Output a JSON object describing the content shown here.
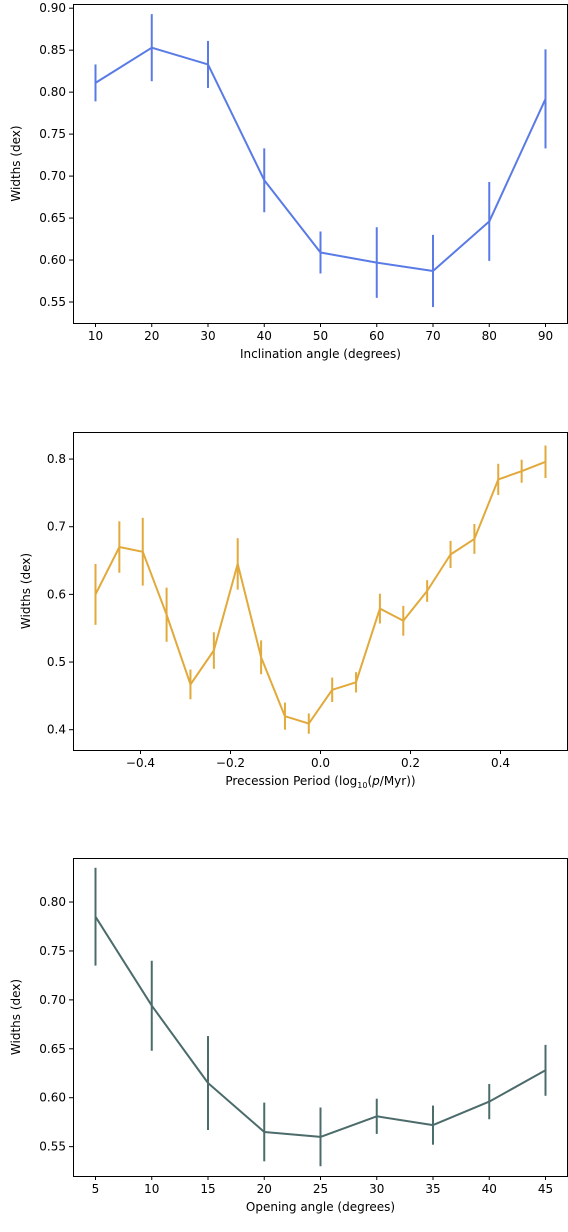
{
  "chart_data": [
    {
      "type": "line",
      "color": "#5a7be6",
      "xlabel": "Inclination angle (degrees)",
      "ylabel": "Widths (dex)",
      "xlim": [
        6,
        94
      ],
      "ylim": [
        0.525,
        0.905
      ],
      "xticks": [
        10,
        20,
        30,
        40,
        50,
        60,
        70,
        80,
        90
      ],
      "xtick_labels": [
        "10",
        "20",
        "30",
        "40",
        "50",
        "60",
        "70",
        "80",
        "90"
      ],
      "yticks": [
        0.55,
        0.6,
        0.65,
        0.7,
        0.75,
        0.8,
        0.85,
        0.9
      ],
      "ytick_labels": [
        "0.55",
        "0.60",
        "0.65",
        "0.70",
        "0.75",
        "0.80",
        "0.85",
        "0.90"
      ],
      "x": [
        10,
        20,
        30,
        40,
        50,
        60,
        70,
        80,
        90
      ],
      "y": [
        0.811,
        0.853,
        0.833,
        0.695,
        0.609,
        0.597,
        0.587,
        0.646,
        0.792
      ],
      "yerr": [
        0.022,
        0.04,
        0.028,
        0.038,
        0.025,
        0.042,
        0.043,
        0.047,
        0.059
      ]
    },
    {
      "type": "line",
      "color": "#e2a93b",
      "xlabel_pre": "Precession Period (log",
      "xlabel_sub": "10",
      "xlabel_mid": "(",
      "xlabel_italic": "p",
      "xlabel_post": "/Myr))",
      "ylabel": "Widths (dex)",
      "xlim": [
        -0.55,
        0.55
      ],
      "ylim": [
        0.37,
        0.84
      ],
      "xticks": [
        -0.4,
        -0.2,
        0.0,
        0.2,
        0.4
      ],
      "xtick_labels": [
        "−0.4",
        "−0.2",
        "0.0",
        "0.2",
        "0.4"
      ],
      "yticks": [
        0.4,
        0.5,
        0.6,
        0.7,
        0.8
      ],
      "ytick_labels": [
        "0.4",
        "0.5",
        "0.6",
        "0.7",
        "0.8"
      ],
      "x": [
        -0.5,
        -0.447,
        -0.395,
        -0.342,
        -0.289,
        -0.237,
        -0.184,
        -0.132,
        -0.079,
        -0.026,
        0.026,
        0.079,
        0.132,
        0.184,
        0.237,
        0.289,
        0.342,
        0.395,
        0.447,
        0.5
      ],
      "y": [
        0.6,
        0.67,
        0.663,
        0.57,
        0.467,
        0.517,
        0.645,
        0.507,
        0.42,
        0.409,
        0.459,
        0.47,
        0.579,
        0.561,
        0.605,
        0.659,
        0.682,
        0.77,
        0.782,
        0.796
      ],
      "yerr": [
        0.045,
        0.038,
        0.05,
        0.04,
        0.022,
        0.027,
        0.038,
        0.025,
        0.02,
        0.015,
        0.018,
        0.015,
        0.022,
        0.022,
        0.016,
        0.02,
        0.022,
        0.023,
        0.017,
        0.024
      ]
    },
    {
      "type": "line",
      "color": "#4c6b6b",
      "xlabel": "Opening angle (degrees)",
      "ylabel": "Widths (dex)",
      "xlim": [
        3,
        47
      ],
      "ylim": [
        0.52,
        0.845
      ],
      "xticks": [
        5,
        10,
        15,
        20,
        25,
        30,
        35,
        40,
        45
      ],
      "xtick_labels": [
        "5",
        "10",
        "15",
        "20",
        "25",
        "30",
        "35",
        "40",
        "45"
      ],
      "yticks": [
        0.55,
        0.6,
        0.65,
        0.7,
        0.75,
        0.8
      ],
      "ytick_labels": [
        "0.55",
        "0.60",
        "0.65",
        "0.70",
        "0.75",
        "0.80"
      ],
      "x": [
        5,
        10,
        15,
        20,
        25,
        30,
        35,
        40,
        45
      ],
      "y": [
        0.785,
        0.694,
        0.615,
        0.565,
        0.56,
        0.581,
        0.572,
        0.596,
        0.628
      ],
      "yerr": [
        0.05,
        0.046,
        0.048,
        0.03,
        0.03,
        0.018,
        0.02,
        0.018,
        0.026
      ]
    }
  ]
}
